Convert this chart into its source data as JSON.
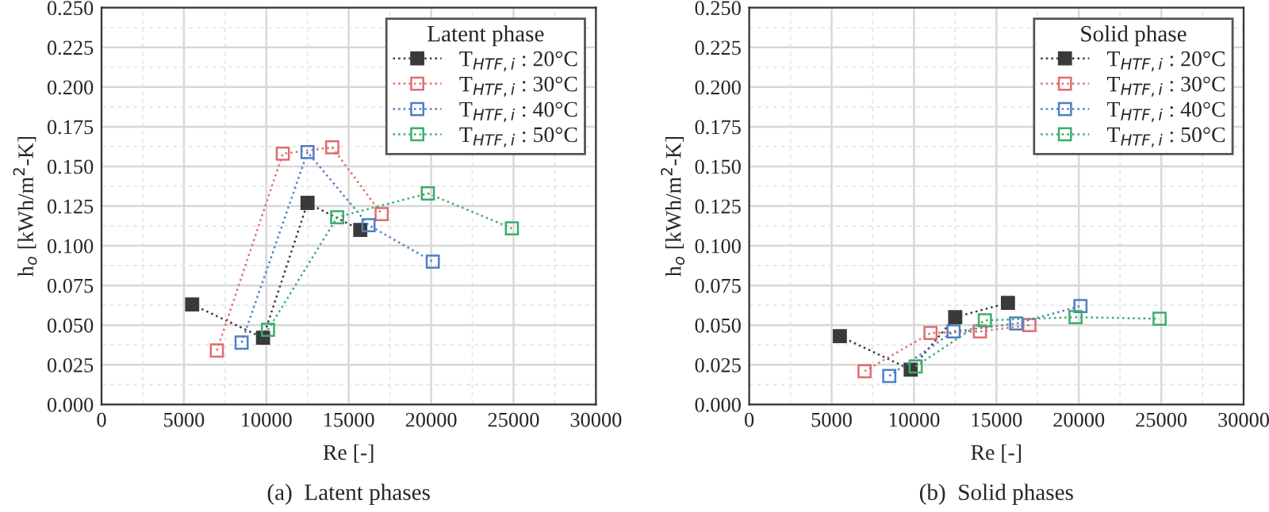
{
  "chart_data": [
    {
      "type": "line",
      "xlabel": "Re [-]",
      "ylabel": "h$_{o}$ [kWh/m$^{2}$-K]",
      "legend_title": "Latent phase",
      "legend": "top right",
      "grid": true,
      "line_style": "dotted",
      "xlim": [
        0,
        30000
      ],
      "xticks": [
        0,
        5000,
        10000,
        15000,
        20000,
        25000,
        30000
      ],
      "ylim": [
        0,
        0.25
      ],
      "yticks": [
        {
          "value": 0,
          "label": "0.000"
        },
        {
          "value": 0.025,
          "label": "0.025"
        },
        {
          "value": 0.05,
          "label": "0.050"
        },
        {
          "value": 0.075,
          "label": "0.075"
        },
        {
          "value": 0.1,
          "label": "0.100"
        },
        {
          "value": 0.125,
          "label": "0.125"
        },
        {
          "value": 0.15,
          "label": "0.150"
        },
        {
          "value": 0.175,
          "label": "0.175"
        },
        {
          "value": 0.2,
          "label": "0.200"
        },
        {
          "value": 0.225,
          "label": "0.225"
        },
        {
          "value": 0.25,
          "label": "0.250"
        }
      ],
      "annotations": [
        "(a)  Latent phases"
      ],
      "series": [
        {
          "name": "T$_{HTF,i}$ : 20°C",
          "color": "#3a3a3a",
          "marker": "square",
          "x": [
            5500,
            9800,
            12500,
            15700
          ],
          "values": [
            0.063,
            0.042,
            0.127,
            0.11
          ]
        },
        {
          "name": "T$_{HTF,i}$ : 30°C",
          "color": "#e06c6c",
          "marker": "square",
          "x": [
            7000,
            11000,
            14000,
            17000
          ],
          "values": [
            0.034,
            0.158,
            0.162,
            0.12
          ]
        },
        {
          "name": "T$_{HTF,i}$ : 40°C",
          "color": "#4f7fc4",
          "marker": "square",
          "x": [
            8500,
            12500,
            16200,
            20100
          ],
          "values": [
            0.039,
            0.159,
            0.113,
            0.09
          ]
        },
        {
          "name": "T$_{HTF,i}$ : 50°C",
          "color": "#3aad6a",
          "marker": "square",
          "x": [
            10100,
            14300,
            19800,
            24900
          ],
          "values": [
            0.047,
            0.118,
            0.133,
            0.111
          ]
        }
      ]
    },
    {
      "type": "line",
      "xlabel": "Re [-]",
      "ylabel": "h$_{o}$ [kWh/m$^{2}$-K]",
      "legend_title": "Solid phase",
      "legend": "top right",
      "grid": true,
      "line_style": "dotted",
      "xlim": [
        0,
        30000
      ],
      "xticks": [
        0,
        5000,
        10000,
        15000,
        20000,
        25000,
        30000
      ],
      "ylim": [
        0,
        0.25
      ],
      "yticks": [
        {
          "value": 0,
          "label": "0.000"
        },
        {
          "value": 0.025,
          "label": "0.025"
        },
        {
          "value": 0.05,
          "label": "0.050"
        },
        {
          "value": 0.075,
          "label": "0.075"
        },
        {
          "value": 0.1,
          "label": "0.100"
        },
        {
          "value": 0.125,
          "label": "0.125"
        },
        {
          "value": 0.15,
          "label": "0.150"
        },
        {
          "value": 0.175,
          "label": "0.175"
        },
        {
          "value": 0.2,
          "label": "0.200"
        },
        {
          "value": 0.225,
          "label": "0.225"
        },
        {
          "value": 0.25,
          "label": "0.250"
        }
      ],
      "annotations": [
        "(b)  Solid phases"
      ],
      "series": [
        {
          "name": "T$_{HTF,i}$ : 20°C",
          "color": "#3a3a3a",
          "marker": "square",
          "x": [
            5500,
            9800,
            12500,
            15700
          ],
          "values": [
            0.043,
            0.022,
            0.055,
            0.064
          ]
        },
        {
          "name": "T$_{HTF,i}$ : 30°C",
          "color": "#e06c6c",
          "marker": "square",
          "x": [
            7000,
            11000,
            14000,
            17000
          ],
          "values": [
            0.021,
            0.045,
            0.046,
            0.05
          ]
        },
        {
          "name": "T$_{HTF,i}$ : 40°C",
          "color": "#4f7fc4",
          "marker": "square",
          "x": [
            8500,
            12400,
            16200,
            20100
          ],
          "values": [
            0.018,
            0.046,
            0.051,
            0.062
          ]
        },
        {
          "name": "T$_{HTF,i}$ : 50°C",
          "color": "#3aad6a",
          "marker": "square",
          "x": [
            10100,
            14300,
            19800,
            24900
          ],
          "values": [
            0.024,
            0.053,
            0.055,
            0.054
          ]
        }
      ]
    }
  ]
}
